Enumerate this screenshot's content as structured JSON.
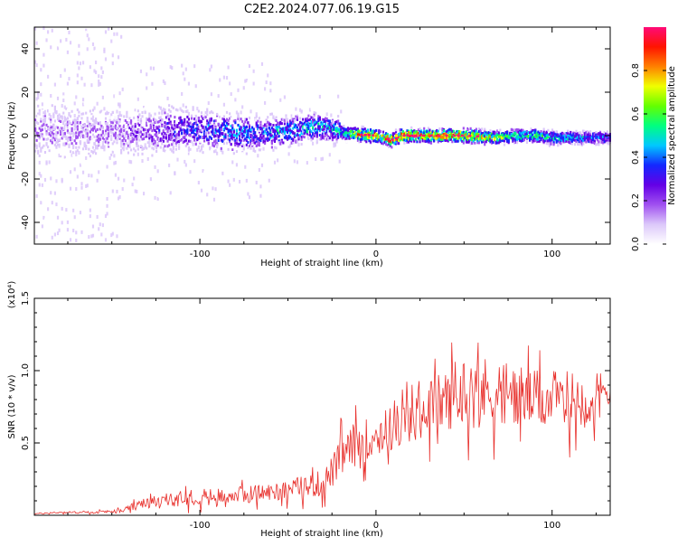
{
  "figure_title": "C2E2.2024.077.06.19.G15",
  "chart_data": [
    {
      "type": "heatmap",
      "title": "C2E2.2024.077.06.19.G15",
      "xlabel": "Height of straight line (km)",
      "ylabel": "Frequency (Hz)",
      "xlim": [
        -194,
        133
      ],
      "ylim": [
        -50,
        50
      ],
      "x_ticks": [
        -100,
        0,
        100
      ],
      "y_ticks": [
        -40,
        -20,
        0,
        20,
        40
      ],
      "colorbar": {
        "label": "Normalized spectral amplitude",
        "range": [
          0,
          1
        ],
        "ticks": [
          "0.0",
          "0.2",
          "0.4",
          "0.6",
          "0.8"
        ],
        "tick_values": [
          0.0,
          0.2,
          0.4,
          0.6,
          0.8
        ],
        "colormap": [
          "#ffffff",
          "#dcc8fa",
          "#a050f0",
          "#6400e6",
          "#1428ff",
          "#00c8ff",
          "#00ff80",
          "#64ff00",
          "#f0ff00",
          "#ff8000",
          "#ff1400",
          "#ff0a78"
        ]
      },
      "ridge": {
        "x": [
          -194,
          -170,
          -150,
          -130,
          -110,
          -90,
          -70,
          -50,
          -35,
          -25,
          -18,
          -10,
          0,
          8,
          15,
          30,
          50,
          70,
          80,
          90,
          100,
          110,
          120,
          133
        ],
        "freq": [
          2,
          1.5,
          1,
          2,
          3,
          2,
          1,
          2,
          4,
          3,
          1,
          0.5,
          0,
          -2,
          0,
          0,
          0,
          -1,
          0,
          0,
          -1,
          -1,
          -1,
          -1
        ],
        "amplitude": [
          0.22,
          0.22,
          0.22,
          0.3,
          0.4,
          0.45,
          0.48,
          0.5,
          0.55,
          0.5,
          0.6,
          0.85,
          0.92,
          0.9,
          0.95,
          0.92,
          0.9,
          0.75,
          0.65,
          0.6,
          0.6,
          0.55,
          0.5,
          0.45
        ]
      }
    },
    {
      "type": "line",
      "xlabel": "Height of straight line (km)",
      "ylabel": "SNR (10 * v/v)",
      "y_multiplier": "(x10⁴)",
      "xlim": [
        -194,
        133
      ],
      "ylim": [
        0,
        1.5
      ],
      "x_ticks": [
        -100,
        0,
        100
      ],
      "y_ticks": [
        0.5,
        1.0,
        1.5
      ],
      "y_tick_labels": [
        "0.5",
        "1.0",
        "1.5"
      ],
      "color": "#e8302c",
      "series": [
        {
          "x": [
            -194,
            -180,
            -160,
            -145,
            -140,
            -130,
            -120,
            -110,
            -100,
            -90,
            -80,
            -70,
            -60,
            -50,
            -40,
            -30,
            -25,
            -22,
            -20,
            -15,
            -10,
            -5,
            0,
            5,
            10,
            20,
            30,
            40,
            50,
            60,
            70,
            80,
            90,
            100,
            110,
            120,
            133
          ],
          "values": [
            0.01,
            0.02,
            0.02,
            0.03,
            0.05,
            0.08,
            0.1,
            0.12,
            0.13,
            0.13,
            0.14,
            0.15,
            0.16,
            0.18,
            0.2,
            0.22,
            0.3,
            0.35,
            0.4,
            0.45,
            0.5,
            0.52,
            0.55,
            0.58,
            0.6,
            0.66,
            0.75,
            0.8,
            0.85,
            0.85,
            0.85,
            0.83,
            0.8,
            0.8,
            0.8,
            0.8,
            0.8
          ],
          "noise": [
            0.005,
            0.008,
            0.01,
            0.015,
            0.03,
            0.05,
            0.06,
            0.07,
            0.07,
            0.07,
            0.07,
            0.08,
            0.08,
            0.09,
            0.1,
            0.12,
            0.14,
            0.16,
            0.18,
            0.18,
            0.18,
            0.19,
            0.2,
            0.2,
            0.2,
            0.22,
            0.24,
            0.26,
            0.3,
            0.32,
            0.3,
            0.28,
            0.25,
            0.25,
            0.25,
            0.25,
            0.25
          ]
        }
      ]
    }
  ]
}
